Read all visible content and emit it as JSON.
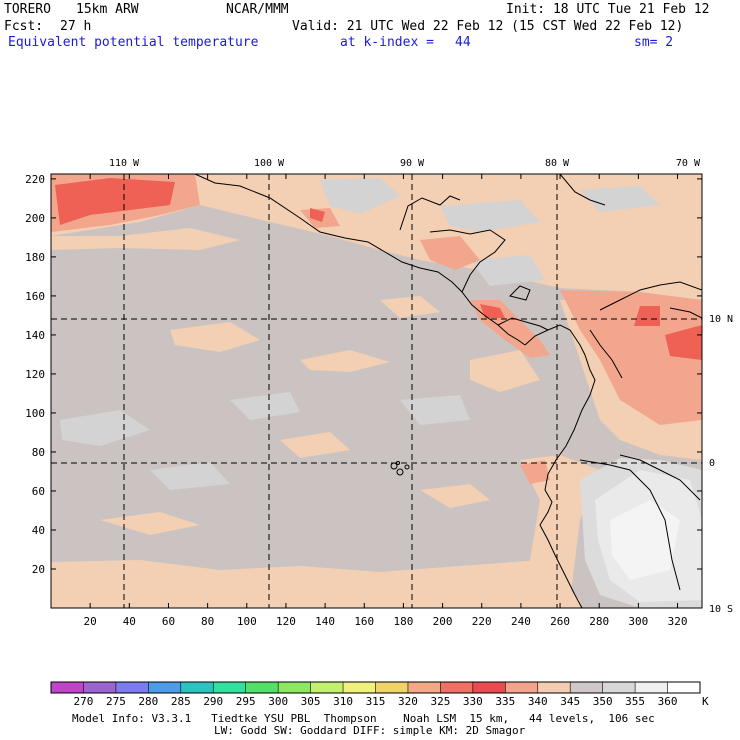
{
  "header": {
    "model_name": "TORERO",
    "resolution": "15km ARW",
    "org": "NCAR/MMM",
    "init": "Init: 18 UTC Tue 21 Feb 12",
    "fcst_label": "Fcst:",
    "fcst_hours": "27 h",
    "valid": "Valid: 21 UTC Wed 22 Feb 12 (15 CST Wed 22 Feb 12)",
    "field": "Equivalent potential temperature",
    "level": "at k-index =",
    "k_index": "44",
    "smoothing": "sm= 2"
  },
  "map": {
    "lon_labels": [
      "110 W",
      "100 W",
      "90 W",
      "80 W",
      "70 W"
    ],
    "lat_labels": [
      "10 N",
      "0",
      "10 S"
    ],
    "y_ticks": [
      220,
      200,
      180,
      160,
      140,
      120,
      100,
      80,
      60,
      40,
      20
    ],
    "x_ticks": [
      20,
      40,
      60,
      80,
      100,
      120,
      140,
      160,
      180,
      200,
      220,
      240,
      260,
      280,
      300,
      320
    ]
  },
  "colorbar": {
    "unit": "K",
    "labels": [
      "270",
      "275",
      "280",
      "285",
      "290",
      "295",
      "300",
      "305",
      "310",
      "315",
      "320",
      "325",
      "330",
      "335",
      "340",
      "345",
      "350",
      "355",
      "360"
    ],
    "colors": [
      "#c044c8",
      "#9c64d0",
      "#7c7cf0",
      "#4c9ce8",
      "#2cc4c0",
      "#30e09c",
      "#54e068",
      "#8ce860",
      "#c4f070",
      "#f0f07c",
      "#f0d468",
      "#f4a884",
      "#f07064",
      "#e84c50",
      "#f4a48c",
      "#f4ccb0",
      "#d0c8c8",
      "#d8d8d8",
      "#f0f0f0",
      "#ffffff"
    ]
  },
  "footer": {
    "line1": "Model Info: V3.3.1   Tiedtke YSU PBL  Thompson    Noah LSM  15 km,   44 levels,  106 sec",
    "line2": "LW: Godd SW: Goddard DIFF: simple KM: 2D Smagor"
  }
}
